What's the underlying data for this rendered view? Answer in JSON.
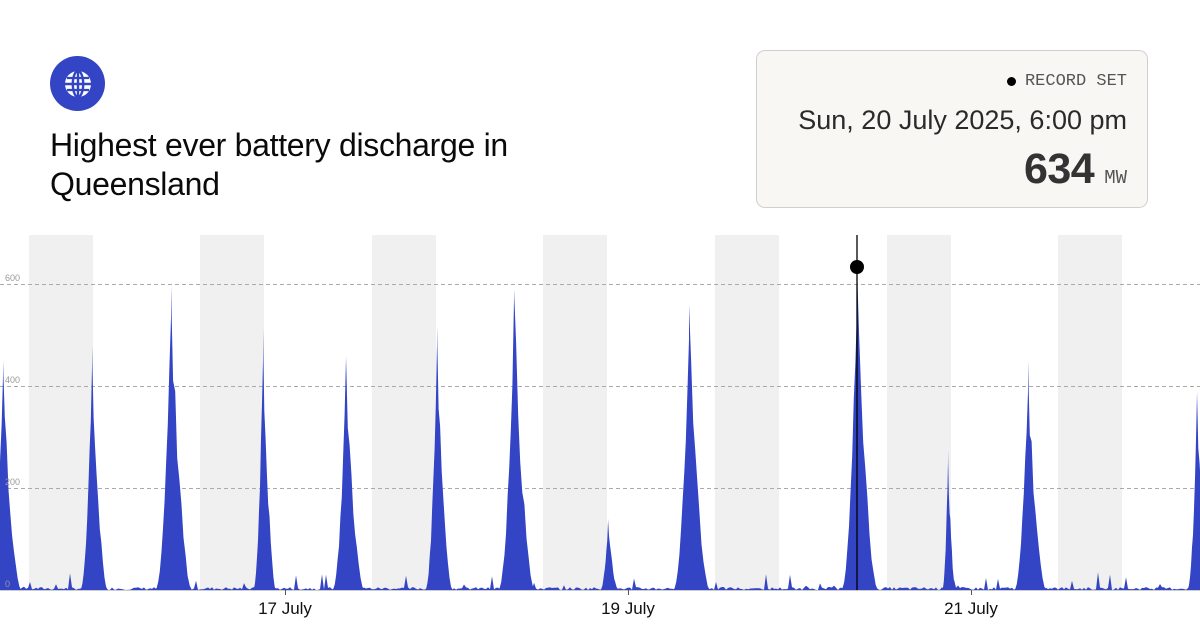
{
  "header": {
    "logo_icon": "globe-icon",
    "title": "Highest ever battery discharge in Queensland"
  },
  "record_card": {
    "status_label": "RECORD SET",
    "datetime": "Sun, 20 July 2025, 6:00 pm",
    "value": "634",
    "unit": "MW"
  },
  "colors": {
    "accent": "#3344c4",
    "area_fill": "#3344c4",
    "night_band": "#f0f0f0",
    "grid": "#aaaaaa",
    "marker": "#000000",
    "card_bg": "#f8f7f4"
  },
  "chart_data": {
    "type": "area",
    "title": "Highest ever battery discharge in Queensland",
    "xlabel": "",
    "ylabel": "MW",
    "ylim": [
      0,
      700
    ],
    "yticks": [
      0,
      200,
      400,
      600
    ],
    "grid": true,
    "legend": "none",
    "x_tick_labels": [
      "17 July",
      "19 July",
      "21 July"
    ],
    "x_range": "~15 July 2025 to ~22 July 2025 (7 days)",
    "shading": "alternating night-time bands",
    "daily_peaks": [
      {
        "time": "15 July evening",
        "value": 450
      },
      {
        "time": "16 July morning",
        "value": 480
      },
      {
        "time": "16 July evening",
        "value": 597
      },
      {
        "time": "17 July morning",
        "value": 512
      },
      {
        "time": "17 July evening",
        "value": 460
      },
      {
        "time": "18 July morning",
        "value": 518
      },
      {
        "time": "18 July evening",
        "value": 590
      },
      {
        "time": "19 July morning",
        "value": 140
      },
      {
        "time": "19 July evening",
        "value": 560
      },
      {
        "time": "20 July 6:00 pm",
        "value": 634,
        "record": true
      },
      {
        "time": "21 July morning",
        "value": 275
      },
      {
        "time": "21 July evening",
        "value": 450
      },
      {
        "time": "22 July evening",
        "value": 390
      }
    ],
    "annotation": {
      "label": "RECORD SET",
      "datetime": "Sun, 20 July 2025, 6:00 pm",
      "value": 634,
      "unit": "MW"
    }
  }
}
